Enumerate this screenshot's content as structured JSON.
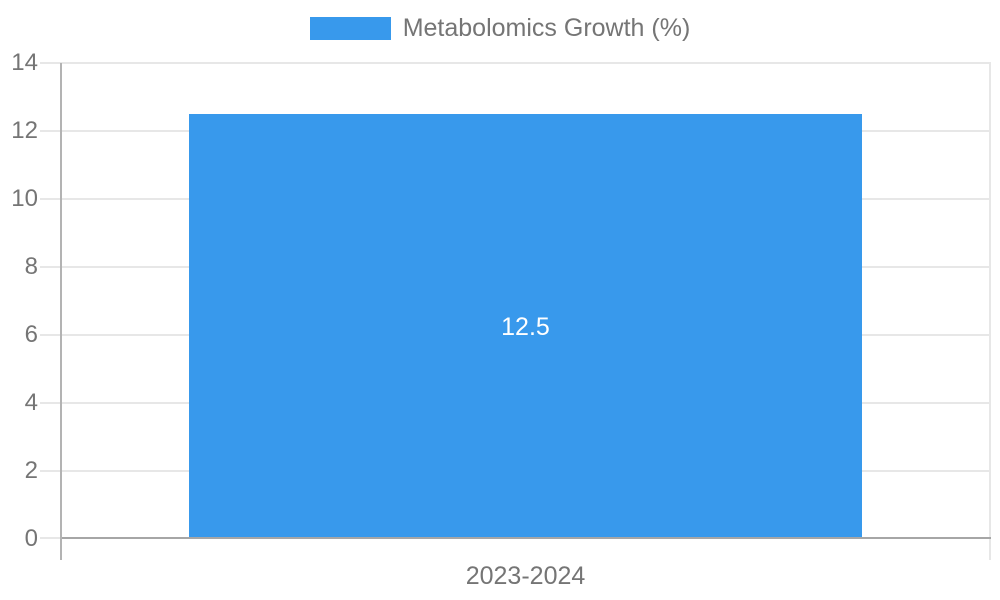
{
  "legend": {
    "label": "Metabolomics Growth (%)"
  },
  "chart_data": {
    "type": "bar",
    "title": "",
    "xlabel": "",
    "ylabel": "",
    "categories": [
      "2023-2024"
    ],
    "series": [
      {
        "name": "Metabolomics Growth (%)",
        "values": [
          12.5
        ]
      }
    ],
    "data_labels": [
      "12.5"
    ],
    "ylim": [
      0,
      14
    ],
    "ytick_step": 2,
    "ytick_labels": [
      "0",
      "2",
      "4",
      "6",
      "8",
      "10",
      "12",
      "14"
    ],
    "grid": true,
    "legend_position": "top-center",
    "colors": {
      "bar": "#3899ec",
      "data_label": "#ffffff",
      "tick_text": "#757575",
      "gridline": "#e7e7e7",
      "axis_line": "#b3b3b3",
      "baseline": "#a6a6a6",
      "background": "#ffffff"
    }
  }
}
